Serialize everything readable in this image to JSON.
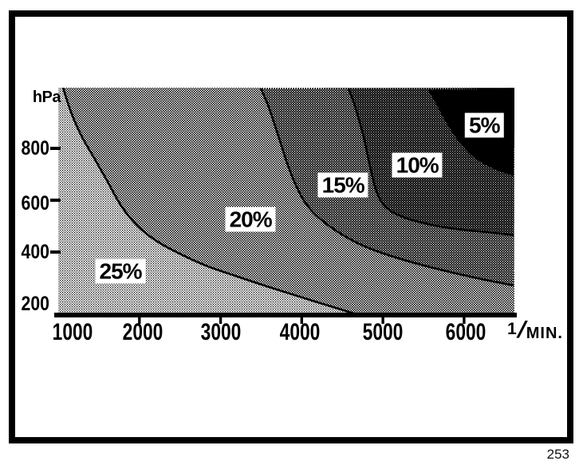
{
  "page_number": "253",
  "colors": {
    "ink": "#000000",
    "paper": "#ffffff"
  },
  "chart_data": {
    "type": "area",
    "subtype": "contour-map-halftone",
    "title": "",
    "ylabel": "hPa",
    "x_unit": {
      "sup": "1",
      "slash": "/",
      "text": "MIN."
    },
    "x_domain": [
      1000,
      6620
    ],
    "y_domain": [
      166,
      1034
    ],
    "x_ticks": [
      {
        "v": 1000,
        "label": "1000"
      },
      {
        "v": 2000,
        "label": "2000"
      },
      {
        "v": 3000,
        "label": "3000"
      },
      {
        "v": 4000,
        "label": "4000"
      },
      {
        "v": 5000,
        "label": "5000"
      },
      {
        "v": 6000,
        "label": "6000"
      }
    ],
    "y_ticks": [
      {
        "v": 200,
        "label": "200",
        "dash": false
      },
      {
        "v": 400,
        "label": "400",
        "dash": true
      },
      {
        "v": 600,
        "label": "600",
        "dash": true
      },
      {
        "v": 800,
        "label": "800",
        "dash": true
      }
    ],
    "regions": [
      {
        "label": "25%",
        "value": 25,
        "pattern": "ht25",
        "label_at": [
          1767,
          326
        ]
      },
      {
        "label": "20%",
        "value": 20,
        "pattern": "ht20",
        "label_at": [
          3369,
          526
        ]
      },
      {
        "label": "15%",
        "value": 15,
        "pattern": "ht15",
        "label_at": [
          4509,
          658
        ]
      },
      {
        "label": "10%",
        "value": 10,
        "pattern": "ht10",
        "label_at": [
          5423,
          735
        ]
      },
      {
        "label": "5%",
        "value": 5,
        "pattern": "solid",
        "label_at": [
          6249,
          889
        ]
      }
    ],
    "contours": [
      {
        "between": [
          25,
          20
        ],
        "points": [
          [
            1059,
            1034
          ],
          [
            1167,
            932
          ],
          [
            1295,
            843
          ],
          [
            1442,
            763
          ],
          [
            1609,
            671
          ],
          [
            1776,
            578
          ],
          [
            1973,
            502
          ],
          [
            2209,
            443
          ],
          [
            2494,
            394
          ],
          [
            2818,
            348
          ],
          [
            3182,
            308
          ],
          [
            3624,
            262
          ],
          [
            4135,
            212
          ],
          [
            4705,
            157
          ]
        ]
      },
      {
        "between": [
          20,
          15
        ],
        "points": [
          [
            3496,
            1031
          ],
          [
            3585,
            966
          ],
          [
            3663,
            895
          ],
          [
            3742,
            818
          ],
          [
            3821,
            742
          ],
          [
            3909,
            671
          ],
          [
            4017,
            603
          ],
          [
            4155,
            548
          ],
          [
            4332,
            502
          ],
          [
            4548,
            458
          ],
          [
            4803,
            418
          ],
          [
            5098,
            385
          ],
          [
            5432,
            354
          ],
          [
            5786,
            326
          ],
          [
            6179,
            298
          ],
          [
            6612,
            271
          ]
        ]
      },
      {
        "between": [
          15,
          10
        ],
        "points": [
          [
            4577,
            1031
          ],
          [
            4646,
            972
          ],
          [
            4705,
            911
          ],
          [
            4764,
            843
          ],
          [
            4813,
            772
          ],
          [
            4862,
            702
          ],
          [
            4921,
            634
          ],
          [
            5000,
            585
          ],
          [
            5118,
            554
          ],
          [
            5275,
            532
          ],
          [
            5472,
            514
          ],
          [
            5708,
            498
          ],
          [
            5983,
            486
          ],
          [
            6278,
            477
          ],
          [
            6612,
            465
          ]
        ]
      },
      {
        "between": [
          10,
          5
        ],
        "points": [
          [
            5570,
            1025
          ],
          [
            5659,
            978
          ],
          [
            5747,
            926
          ],
          [
            5845,
            874
          ],
          [
            5963,
            822
          ],
          [
            6101,
            775
          ],
          [
            6258,
            742
          ],
          [
            6425,
            717
          ],
          [
            6612,
            698
          ]
        ]
      }
    ]
  }
}
